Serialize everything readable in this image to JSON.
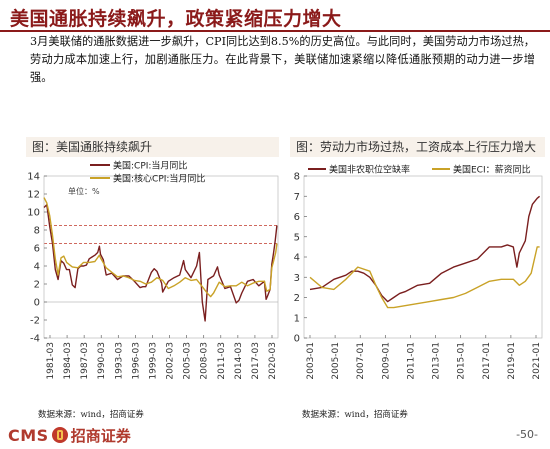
{
  "page": {
    "title": "美国通胀持续飙升，政策紧缩压力增大",
    "paragraph": "3月美联储的通胀数据进一步飙升，CPI同比达到8.5%的历史高位。与此同时，美国劳动力市场过热，劳动力成本加速上行，加剧通胀压力。在此背景下，美联储加速紧缩以降低通胀预期的动力进一步增强。",
    "page_number": "-50-"
  },
  "brand": {
    "cms_text": "CMS",
    "name_text": "招商证券",
    "color": "#b03a2e"
  },
  "colors": {
    "title": "#8B1A1A",
    "series_dark": "#7A1F1F",
    "series_gold": "#C9A227",
    "ref_line": "#C0392B"
  },
  "left_panel": {
    "heading": "图：美国通胀持续飙升",
    "source": "数据来源：wind，招商证券"
  },
  "right_panel": {
    "heading": "图：劳动力市场过热，工资成本上行压力增大",
    "source": "数据来源：wind，招商证券"
  },
  "chart_data": [
    {
      "type": "line",
      "unit_label": "单位：%",
      "ylim": [
        -4,
        14
      ],
      "yticks": [
        -4,
        -2,
        0,
        2,
        4,
        6,
        8,
        10,
        12,
        14
      ],
      "x_tick_labels": [
        "1981-03",
        "1984-03",
        "1987-03",
        "1990-03",
        "1993-03",
        "1996-03",
        "1999-03",
        "2002-03",
        "2005-03",
        "2008-03",
        "2011-03",
        "2014-03",
        "2017-03",
        "2020-03"
      ],
      "xlim": [
        1981.0,
        2022.4
      ],
      "reference_lines": [
        6.5,
        8.5
      ],
      "legend_position": "top-center",
      "series": [
        {
          "name": "美国:CPI:当月同比",
          "color": "#7A1F1F",
          "x": [
            1981.0,
            1981.5,
            1982.0,
            1982.5,
            1983.0,
            1983.5,
            1984.0,
            1984.5,
            1985.0,
            1985.5,
            1986.0,
            1986.5,
            1987.0,
            1987.5,
            1988.0,
            1988.5,
            1989.0,
            1989.5,
            1990.0,
            1990.5,
            1990.8,
            1991.0,
            1991.5,
            1992.0,
            1993.0,
            1994.0,
            1995.0,
            1996.0,
            1997.0,
            1998.0,
            1998.5,
            1999.0,
            2000.0,
            2000.5,
            2001.0,
            2001.8,
            2002.0,
            2003.0,
            2004.0,
            2005.0,
            2005.7,
            2006.0,
            2007.0,
            2008.0,
            2008.5,
            2009.0,
            2009.5,
            2010.0,
            2011.0,
            2011.7,
            2012.0,
            2013.0,
            2014.0,
            2015.0,
            2015.5,
            2016.0,
            2017.0,
            2018.0,
            2019.0,
            2020.0,
            2020.3,
            2020.5,
            2021.0,
            2021.3,
            2021.6,
            2021.9,
            2022.2
          ],
          "values": [
            10.5,
            10.8,
            8.4,
            6.5,
            3.6,
            2.5,
            4.6,
            4.3,
            3.6,
            3.6,
            1.9,
            1.6,
            3.7,
            4.0,
            4.0,
            4.1,
            4.8,
            5.0,
            5.2,
            5.5,
            6.2,
            5.3,
            4.7,
            3.0,
            3.2,
            2.5,
            2.9,
            2.9,
            2.3,
            1.6,
            1.7,
            1.7,
            3.3,
            3.7,
            3.4,
            2.1,
            1.1,
            2.3,
            2.7,
            3.0,
            4.6,
            3.6,
            2.7,
            4.0,
            5.5,
            0.0,
            -2.1,
            2.5,
            2.9,
            3.9,
            3.0,
            1.5,
            1.7,
            -0.1,
            0.2,
            1.0,
            2.3,
            2.5,
            1.8,
            2.3,
            0.3,
            0.6,
            1.4,
            4.2,
            5.4,
            6.8,
            8.5
          ]
        },
        {
          "name": "美国:核心CPI:当月同比",
          "color": "#C9A227",
          "x": [
            1981.0,
            1981.5,
            1982.0,
            1982.5,
            1983.0,
            1983.5,
            1984.0,
            1984.5,
            1985.0,
            1986.0,
            1987.0,
            1988.0,
            1989.0,
            1990.0,
            1990.8,
            1991.0,
            1992.0,
            1993.0,
            1994.0,
            1995.0,
            1996.0,
            1997.0,
            1998.0,
            1999.0,
            2000.0,
            2001.0,
            2002.0,
            2003.0,
            2004.0,
            2005.0,
            2006.0,
            2007.0,
            2008.0,
            2009.0,
            2010.0,
            2010.5,
            2011.0,
            2012.0,
            2013.0,
            2014.0,
            2015.0,
            2016.0,
            2017.0,
            2018.0,
            2019.0,
            2020.0,
            2020.4,
            2021.0,
            2021.3,
            2021.6,
            2022.0,
            2022.2
          ],
          "values": [
            11.6,
            11.0,
            9.6,
            7.4,
            4.8,
            3.0,
            4.9,
            5.1,
            4.4,
            3.9,
            3.8,
            4.4,
            4.4,
            4.5,
            5.2,
            4.9,
            3.8,
            3.3,
            2.8,
            2.9,
            2.7,
            2.4,
            2.3,
            2.0,
            2.2,
            2.7,
            2.4,
            1.5,
            1.8,
            2.2,
            2.7,
            2.4,
            2.5,
            1.7,
            0.9,
            0.6,
            1.0,
            2.2,
            1.7,
            1.8,
            1.8,
            2.2,
            1.8,
            2.1,
            2.3,
            2.3,
            1.2,
            1.4,
            3.8,
            4.5,
            5.5,
            6.5
          ]
        }
      ]
    },
    {
      "type": "line",
      "unit_label": "",
      "ylim": [
        0,
        8
      ],
      "yticks": [
        0,
        1,
        2,
        3,
        4,
        5,
        6,
        7,
        8
      ],
      "x_tick_labels": [
        "2003-01",
        "2005-01",
        "2007-01",
        "2009-01",
        "2011-01",
        "2013-01",
        "2015-01",
        "2017-01",
        "2019-01",
        "2021-01"
      ],
      "xlim": [
        2002.5,
        2022.4
      ],
      "legend_position": "top",
      "series": [
        {
          "name": "美国非农职位空缺率",
          "color": "#7A1F1F",
          "x": [
            2003.0,
            2004.0,
            2005.0,
            2006.0,
            2006.5,
            2007.0,
            2007.5,
            2008.0,
            2008.5,
            2009.0,
            2009.5,
            2010.0,
            2010.5,
            2011.0,
            2012.0,
            2013.0,
            2014.0,
            2015.0,
            2016.0,
            2017.0,
            2018.0,
            2019.0,
            2019.5,
            2020.0,
            2020.3,
            2020.5,
            2021.0,
            2021.3,
            2021.6,
            2022.0,
            2022.2
          ],
          "values": [
            2.4,
            2.5,
            2.9,
            3.1,
            3.3,
            3.3,
            3.2,
            3.0,
            2.6,
            2.1,
            1.8,
            2.0,
            2.2,
            2.3,
            2.6,
            2.7,
            3.2,
            3.5,
            3.7,
            3.9,
            4.5,
            4.5,
            4.6,
            4.5,
            3.5,
            4.2,
            4.8,
            6.0,
            6.6,
            6.9,
            7.0
          ]
        },
        {
          "name": "美国ECI：薪资同比",
          "color": "#C9A227",
          "x": [
            2003.0,
            2004.0,
            2005.0,
            2006.0,
            2007.0,
            2008.0,
            2008.5,
            2009.0,
            2009.5,
            2010.0,
            2011.0,
            2012.0,
            2013.0,
            2014.0,
            2015.0,
            2016.0,
            2017.0,
            2018.0,
            2019.0,
            2020.0,
            2020.5,
            2021.0,
            2021.5,
            2022.0,
            2022.2
          ],
          "values": [
            3.0,
            2.5,
            2.4,
            2.9,
            3.5,
            3.3,
            2.6,
            2.0,
            1.5,
            1.5,
            1.6,
            1.7,
            1.8,
            1.9,
            2.0,
            2.2,
            2.5,
            2.8,
            2.9,
            2.9,
            2.6,
            2.8,
            3.2,
            4.5,
            4.5
          ]
        }
      ]
    }
  ]
}
